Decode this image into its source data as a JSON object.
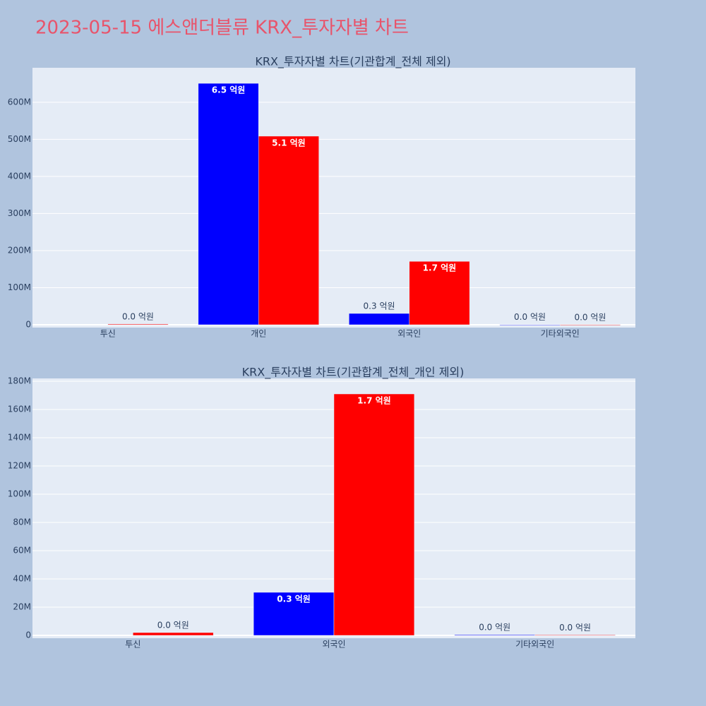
{
  "title": "2023-05-15 에스앤더블류 KRX_투자자별 차트",
  "chart_data": [
    {
      "type": "bar",
      "title": "KRX_투자자별 차트(기관합계_전체 제외)",
      "categories": [
        "투신",
        "개인",
        "외국인",
        "기타외국인"
      ],
      "series": [
        {
          "color": "#0000ff",
          "values": [
            null,
            651000000,
            30500000,
            500000
          ],
          "value_labels": [
            null,
            "6.5 억원",
            "0.3 억원",
            "0.0 억원"
          ]
        },
        {
          "color": "#ff0000",
          "values": [
            2000000,
            508600000,
            171000000,
            300000
          ],
          "value_labels": [
            "0.0 억원",
            "5.1 억원",
            "1.7 억원",
            "0.0 억원"
          ]
        }
      ],
      "ylim": [
        -7600000,
        693000000
      ],
      "yticks": [
        0,
        {
          "value": 100000000,
          "label": "100M"
        },
        {
          "value": 200000000,
          "label": "200M"
        },
        {
          "value": 300000000,
          "label": "300M"
        },
        {
          "value": 400000000,
          "label": "400M"
        },
        {
          "value": 500000000,
          "label": "500M"
        },
        {
          "value": 600000000,
          "label": "600M"
        }
      ],
      "grid": true
    },
    {
      "type": "bar",
      "title": "KRX_투자자별 차트(기관합계_전체_개인 제외)",
      "categories": [
        "투신",
        "외국인",
        "기타외국인"
      ],
      "series": [
        {
          "color": "#0000ff",
          "values": [
            null,
            30500000,
            500000
          ],
          "value_labels": [
            null,
            "0.3 억원",
            "0.0 억원"
          ]
        },
        {
          "color": "#ff0000",
          "values": [
            2000000,
            171000000,
            300000
          ],
          "value_labels": [
            "0.0 억원",
            "1.7 억원",
            "0.0 억원"
          ]
        }
      ],
      "ylim": [
        -2000000,
        182000000
      ],
      "yticks": [
        0,
        {
          "value": 20000000,
          "label": "20M"
        },
        {
          "value": 40000000,
          "label": "40M"
        },
        {
          "value": 60000000,
          "label": "60M"
        },
        {
          "value": 80000000,
          "label": "80M"
        },
        {
          "value": 100000000,
          "label": "100M"
        },
        {
          "value": 120000000,
          "label": "120M"
        },
        {
          "value": 140000000,
          "label": "140M"
        },
        {
          "value": 160000000,
          "label": "160M"
        },
        {
          "value": 180000000,
          "label": "180M"
        }
      ],
      "grid": true
    }
  ]
}
